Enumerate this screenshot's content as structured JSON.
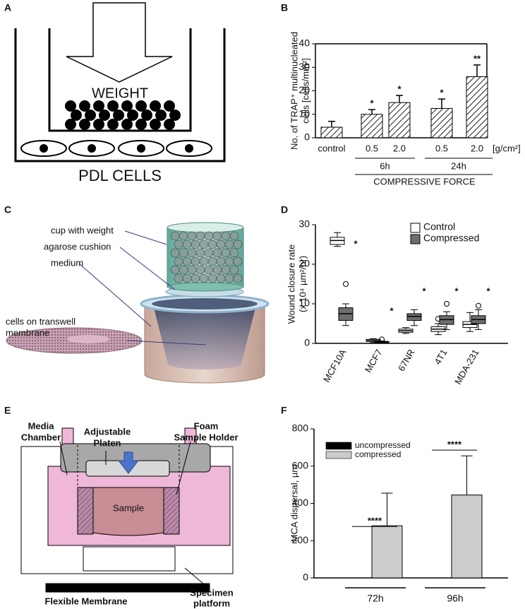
{
  "panel_labels": [
    "A",
    "B",
    "C",
    "D",
    "E",
    "F"
  ],
  "diagram_a": {
    "weight": "WEIGHT",
    "cells": "PDL CELLS"
  },
  "diagram_c": {
    "cup": "cup with weight",
    "cushion": "agarose cushion",
    "medium": "medium",
    "membrane": [
      "cells on transwell",
      "membrane"
    ]
  },
  "diagram_e": {
    "media_chamber": [
      "Media",
      "Chamber"
    ],
    "platen": [
      "Adjustable",
      "Platen"
    ],
    "foam": [
      "Foam",
      "Sample Holder"
    ],
    "sample": "Sample",
    "membrane": "Flexible Membrane",
    "platform": [
      "Specimen",
      "platform"
    ]
  },
  "chart_data": [
    {
      "type": "bar",
      "y_label": [
        "No. of TRAP⁺ multinucleated",
        "cells [cells/mm²]"
      ],
      "categories": [
        "control",
        "0.5",
        "2.0",
        "0.5",
        "2.0"
      ],
      "unit_label": "[g/cm²]",
      "values": [
        4.5,
        10,
        15,
        12.5,
        26
      ],
      "errors": [
        2.5,
        2,
        3,
        4,
        5
      ],
      "significance": [
        null,
        "*",
        "*",
        "*",
        "**"
      ],
      "groups": [
        "6h",
        "24h"
      ],
      "group_title": "COMPRESSIVE FORCE",
      "ylim": [
        0,
        40
      ],
      "yticks": [
        0,
        10,
        20,
        30,
        40
      ],
      "color": "#ffffff",
      "hatch": true,
      "frame": true
    },
    {
      "type": "box",
      "y_label": [
        "Wound closure rate",
        "(x 10⁴ µm²/hr)"
      ],
      "categories": [
        "MCF10A",
        "MCF7",
        "67NR",
        "4T1",
        "MDA-231"
      ],
      "series": [
        {
          "name": "Control",
          "color": "#ffffff",
          "whisker_low": [
            24.5,
            0.2,
            2.5,
            2.2,
            3
          ],
          "q1": [
            25,
            0.5,
            2.8,
            3,
            4
          ],
          "median": [
            26,
            0.7,
            3.2,
            3.6,
            4.8
          ],
          "q3": [
            26.8,
            1,
            3.6,
            4.2,
            5.5
          ],
          "whisker_high": [
            28,
            1.2,
            4,
            5,
            7.8
          ],
          "outliers": [
            [],
            [],
            [],
            [
              6.2
            ],
            []
          ]
        },
        {
          "name": "Compressed",
          "color": "#6e6e6e",
          "whisker_low": [
            4.5,
            0,
            4.5,
            3.5,
            3.5
          ],
          "q1": [
            5.8,
            0.2,
            5.8,
            4.8,
            5
          ],
          "median": [
            7.5,
            0.3,
            6.8,
            6,
            6
          ],
          "q3": [
            9,
            0.5,
            7.5,
            7,
            7
          ],
          "whisker_high": [
            10,
            0.6,
            8.5,
            8,
            8.5
          ],
          "outliers": [
            [
              15
            ],
            [
              1
            ],
            [],
            [
              10
            ],
            [
              9.5
            ]
          ]
        }
      ],
      "significance": [
        {
          "label": "*",
          "value": 25
        },
        {
          "label": "*",
          "value": 8
        },
        {
          "label": "*",
          "value": 13
        },
        {
          "label": "*",
          "value": 13
        },
        {
          "label": "*",
          "value": 13
        }
      ],
      "ylim": [
        0,
        30
      ],
      "yticks": [
        0,
        10,
        20,
        30
      ],
      "legend": "upper right"
    },
    {
      "type": "bar",
      "y_label": [
        "MCA dispersal, µm"
      ],
      "categories": [
        "72h",
        "96h"
      ],
      "series": [
        {
          "name": "uncompressed",
          "color": "#000000",
          "values": [
            0,
            0
          ]
        },
        {
          "name": "compressed",
          "color": "#cccccc",
          "values": [
            280,
            445
          ],
          "errors": [
            175,
            210
          ]
        }
      ],
      "significance": [
        {
          "label": "****",
          "value": 276
        },
        {
          "label": "****",
          "value": 686
        }
      ],
      "ylim": [
        0,
        800
      ],
      "yticks": [
        0,
        200,
        400,
        600,
        800
      ],
      "legend": "upper left"
    }
  ]
}
